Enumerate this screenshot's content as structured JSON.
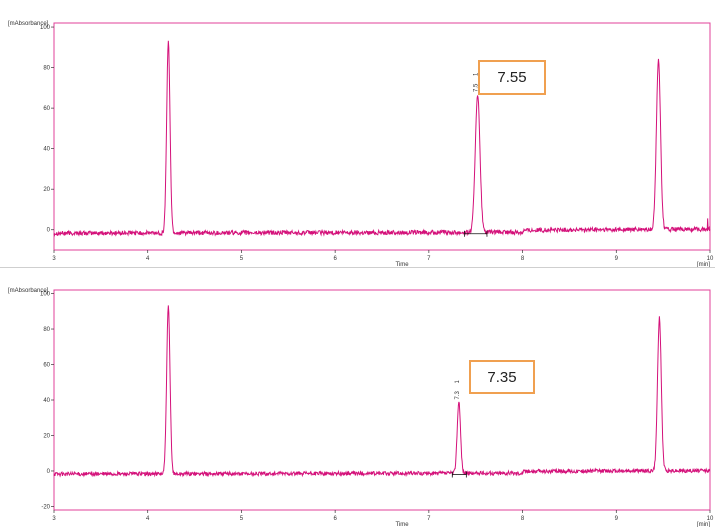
{
  "colors": {
    "trace": "#d4117a",
    "frame": "#e0409a",
    "axis": "#333333",
    "callout_border": "#f0a050"
  },
  "chart_data": [
    {
      "type": "line",
      "ylabel": "[mAbsorbance]",
      "xlabel": "Time",
      "x_unit_label": "[min]",
      "xlim": [
        3,
        10
      ],
      "ylim": [
        -10,
        102
      ],
      "x_ticks": [
        3,
        4,
        5,
        6,
        7,
        8,
        9,
        10
      ],
      "y_ticks": [
        0,
        20,
        40,
        60,
        80,
        100
      ],
      "baseline": -2,
      "peaks": [
        {
          "x": 4.22,
          "height": 94,
          "width": 0.018
        },
        {
          "x": 7.52,
          "height": 68,
          "width": 0.025
        },
        {
          "x": 9.45,
          "height": 84,
          "width": 0.022
        }
      ],
      "peak_label": "7.5",
      "peak_label_x": 7.52,
      "peak_marker": "1",
      "integration": {
        "start": 7.38,
        "end": 7.62
      },
      "callout": "7.55"
    },
    {
      "type": "line",
      "ylabel": "[mAbsorbance]",
      "xlabel": "Time",
      "x_unit_label": "[min]",
      "xlim": [
        3,
        10
      ],
      "ylim": [
        -22,
        102
      ],
      "x_ticks": [
        3,
        4,
        5,
        6,
        7,
        8,
        9,
        10
      ],
      "y_ticks": [
        -20,
        0,
        20,
        40,
        60,
        80,
        100
      ],
      "baseline": -2,
      "peaks": [
        {
          "x": 4.22,
          "height": 94,
          "width": 0.018
        },
        {
          "x": 7.32,
          "height": 40,
          "width": 0.018
        },
        {
          "x": 9.46,
          "height": 86,
          "width": 0.02
        }
      ],
      "peak_label": "7.3",
      "peak_label_x": 7.32,
      "peak_marker": "1",
      "integration": {
        "start": 7.25,
        "end": 7.4
      },
      "callout": "7.35"
    }
  ]
}
